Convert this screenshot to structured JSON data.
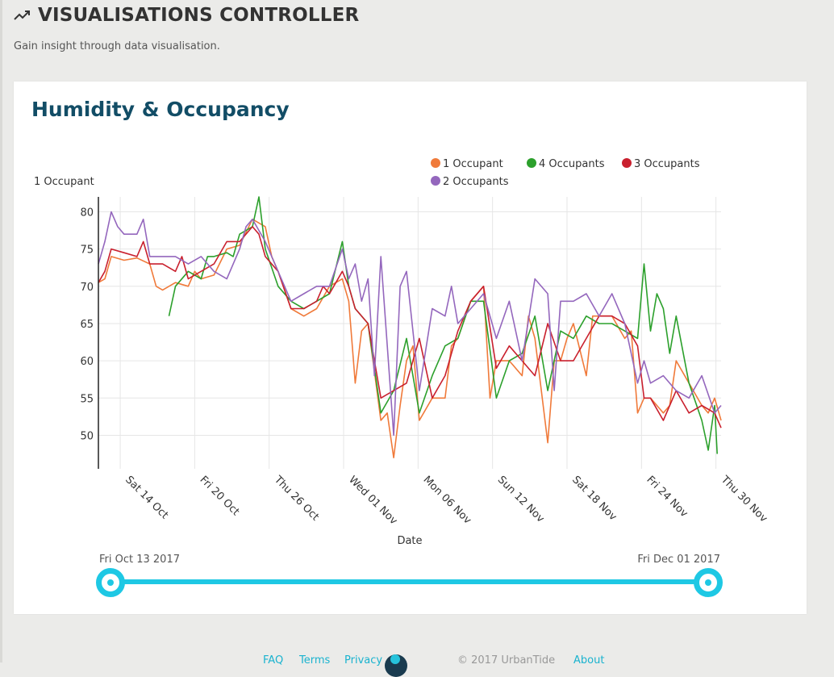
{
  "header": {
    "title": "VISUALISATIONS CONTROLLER",
    "subtitle": "Gain insight through data visualisation."
  },
  "card": {
    "title": "Humidity & Occupancy"
  },
  "chart_data": {
    "type": "line",
    "title": "Humidity & Occupancy",
    "xlabel": "Date",
    "ylabel": "1 Occupant",
    "ylim": [
      45.5,
      82
    ],
    "xlim": [
      0,
      48.5
    ],
    "yticks": [
      50,
      55,
      60,
      65,
      70,
      75,
      80
    ],
    "xticks": [
      {
        "label": "Sat 14 Oct",
        "x": 1.7
      },
      {
        "label": "Fri 20 Oct",
        "x": 7.5
      },
      {
        "label": "Thu 26 Oct",
        "x": 13.3
      },
      {
        "label": "Wed 01 Nov",
        "x": 19.1
      },
      {
        "label": "Mon 06 Nov",
        "x": 24.9
      },
      {
        "label": "Sun 12 Nov",
        "x": 30.7
      },
      {
        "label": "Sat 18 Nov",
        "x": 36.5
      },
      {
        "label": "Fri 24 Nov",
        "x": 42.3
      },
      {
        "label": "Thu 30 Nov",
        "x": 48.1
      }
    ],
    "legend_position": "top-right",
    "series": [
      {
        "name": "1 Occupant",
        "color": "#f07a3a",
        "x": [
          0,
          0.5,
          1,
          2,
          3,
          4,
          4.5,
          5,
          6,
          7,
          7.5,
          8,
          9,
          10,
          11,
          12,
          13,
          13.5,
          14,
          15,
          16,
          17,
          18,
          19,
          19.5,
          20,
          20.5,
          21,
          22,
          22.5,
          23,
          23.5,
          24,
          24.5,
          25,
          26,
          27,
          27.5,
          28,
          29,
          30,
          30.5,
          31,
          32,
          33,
          33.5,
          34,
          35,
          35.5,
          36,
          36.5,
          37,
          38,
          38.5,
          39,
          40,
          41,
          41.5,
          42,
          42.5,
          43,
          44,
          44.5,
          45,
          46,
          47,
          47.5,
          48,
          48.5
        ],
        "y": [
          70.5,
          71,
          74,
          73.5,
          73.8,
          73,
          70,
          69.5,
          70.5,
          70,
          72,
          71,
          71.5,
          75,
          75.5,
          79,
          78,
          74,
          72,
          67,
          66,
          67,
          70,
          71,
          68,
          57,
          64,
          65,
          52,
          53,
          47,
          54,
          60,
          62,
          52,
          55,
          55,
          62,
          63,
          68,
          70,
          55,
          60,
          60,
          58,
          66,
          63,
          49,
          60,
          60,
          63,
          65,
          58,
          66,
          66,
          66,
          63,
          64,
          53,
          55,
          55,
          53,
          54,
          60,
          57,
          54,
          53,
          55,
          52
        ],
        "dashed": false
      },
      {
        "name": "4 Occupants",
        "color": "#2ca02c",
        "x": [
          5.5,
          6,
          7,
          8,
          8.5,
          9,
          10,
          10.5,
          11,
          12,
          12.5,
          13,
          14,
          15,
          16,
          17,
          18,
          19,
          19.5,
          20,
          21,
          22,
          23,
          24,
          25,
          26,
          27,
          28,
          29,
          30,
          31,
          32,
          33,
          34,
          35,
          36,
          37,
          38,
          39,
          40,
          41,
          42,
          42.5,
          43,
          43.5,
          44,
          44.5,
          45,
          46,
          47,
          47.5,
          48,
          48.2
        ],
        "y": [
          66,
          70,
          72,
          71,
          74,
          74,
          74.5,
          74,
          77,
          78,
          82,
          75,
          70,
          68,
          67,
          68,
          69,
          76,
          70,
          67,
          65,
          53,
          56,
          63,
          53,
          58,
          62,
          63,
          68,
          68,
          55,
          60,
          61,
          66,
          56,
          64,
          63,
          66,
          65,
          65,
          64,
          63,
          73,
          64,
          69,
          67,
          61,
          66,
          57,
          52,
          48,
          54,
          47.5
        ],
        "dashed": false
      },
      {
        "name": "3 Occupants",
        "color": "#c9202e",
        "x": [
          0,
          0.5,
          1,
          2,
          3,
          3.5,
          4,
          5,
          6,
          6.5,
          7,
          8,
          9,
          10,
          11,
          12,
          12.5,
          13,
          14,
          15,
          16,
          17,
          17.5,
          18,
          19,
          19.5,
          20,
          21,
          22,
          23,
          24,
          25,
          26,
          27,
          28,
          29,
          30,
          31,
          32,
          33,
          34,
          35,
          36,
          37,
          38,
          39,
          40,
          41,
          42,
          42.5,
          43,
          44,
          45,
          46,
          47,
          48,
          48.5
        ],
        "y": [
          70.5,
          72,
          75,
          74.5,
          74,
          76,
          73,
          73,
          72,
          74,
          71,
          72,
          73,
          76,
          76,
          78,
          77,
          74,
          72,
          67,
          67,
          68,
          70,
          69,
          72,
          70,
          67,
          65,
          55,
          56,
          57,
          63,
          55,
          58,
          64,
          68,
          70,
          59,
          62,
          60,
          58,
          65,
          60,
          60,
          63,
          66,
          66,
          65,
          62,
          55,
          55,
          52,
          56,
          53,
          54,
          53,
          51
        ],
        "dashed": false
      },
      {
        "name": "2 Occupants",
        "color": "#9467bd",
        "x": [
          0,
          0.5,
          1,
          1.5,
          2,
          3,
          3.5,
          4,
          5,
          6,
          7,
          8,
          9,
          10,
          11,
          11.5,
          12,
          13,
          14,
          15,
          16,
          17,
          18,
          19,
          19.5,
          20,
          20.5,
          21,
          21.5,
          22,
          23,
          23.5,
          24,
          25,
          26,
          27,
          27.5,
          28,
          29,
          30,
          31,
          32,
          33,
          34,
          35,
          35.5,
          36,
          37,
          38,
          39,
          40,
          41,
          42,
          42.5,
          43,
          44,
          45,
          46,
          47,
          48,
          48.5
        ],
        "y": [
          73,
          76,
          80,
          78,
          77,
          77,
          79,
          74,
          74,
          74,
          73,
          74,
          72,
          71,
          75,
          78,
          79,
          76,
          72,
          68,
          69,
          70,
          70,
          75,
          71,
          73,
          68,
          71,
          58,
          74,
          50,
          70,
          72,
          56,
          67,
          66,
          70,
          65,
          67,
          69,
          63,
          68,
          60,
          71,
          69,
          56,
          68,
          68,
          69,
          66,
          69,
          65,
          57,
          60,
          57,
          58,
          56,
          55,
          58,
          53,
          54
        ],
        "dashed": false
      }
    ]
  },
  "slider": {
    "start_label": "Fri Oct 13 2017",
    "end_label": "Fri Dec 01 2017"
  },
  "footer": {
    "faq": "FAQ",
    "terms": "Terms",
    "privacy": "Privacy",
    "copyright": "© 2017 UrbanTide",
    "about": "About"
  },
  "colors": {
    "accent": "#1ec8e4",
    "title": "#124d66"
  }
}
